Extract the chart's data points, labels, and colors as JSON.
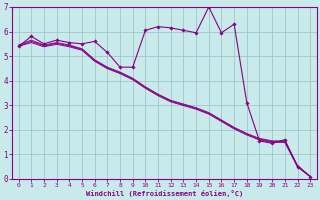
{
  "xlabel": "Windchill (Refroidissement éolien,°C)",
  "bg_color": "#c8eaea",
  "grid_color": "#a0c8c8",
  "line_color": "#880088",
  "xlim": [
    -0.5,
    23.5
  ],
  "ylim": [
    0,
    7
  ],
  "xticks": [
    0,
    1,
    2,
    3,
    4,
    5,
    6,
    7,
    8,
    9,
    10,
    11,
    12,
    13,
    14,
    15,
    16,
    17,
    18,
    19,
    20,
    21,
    22,
    23
  ],
  "yticks": [
    0,
    1,
    2,
    3,
    4,
    5,
    6,
    7
  ],
  "line1_x": [
    0,
    1,
    2,
    3,
    4,
    5,
    6,
    7,
    8,
    9,
    10,
    11,
    12,
    13,
    14,
    15,
    16,
    17,
    18,
    19,
    20,
    21,
    22,
    23
  ],
  "line1_y": [
    5.4,
    5.8,
    5.5,
    5.65,
    5.55,
    5.5,
    5.6,
    5.15,
    4.55,
    4.55,
    6.05,
    6.2,
    6.15,
    6.05,
    5.95,
    7.0,
    5.95,
    6.3,
    3.1,
    1.55,
    1.45,
    1.6,
    0.5,
    0.1
  ],
  "line2_x": [
    0,
    1,
    2,
    3,
    4,
    5,
    6,
    7,
    8,
    9,
    10,
    11,
    12,
    13,
    14,
    15,
    16,
    17,
    18,
    19,
    20,
    21,
    22,
    23
  ],
  "line2_y": [
    5.45,
    5.65,
    5.45,
    5.55,
    5.45,
    5.3,
    4.85,
    4.55,
    4.35,
    4.1,
    3.75,
    3.45,
    3.2,
    3.05,
    2.9,
    2.7,
    2.4,
    2.1,
    1.85,
    1.65,
    1.55,
    1.55,
    0.55,
    0.1
  ],
  "line3_x": [
    0,
    1,
    2,
    3,
    4,
    5,
    6,
    7,
    8,
    9,
    10,
    11,
    12,
    13,
    14,
    15,
    16,
    17,
    18,
    19,
    20,
    21,
    22,
    23
  ],
  "line3_y": [
    5.42,
    5.6,
    5.42,
    5.52,
    5.42,
    5.27,
    4.82,
    4.52,
    4.32,
    4.07,
    3.72,
    3.42,
    3.17,
    3.02,
    2.87,
    2.67,
    2.37,
    2.07,
    1.82,
    1.62,
    1.52,
    1.52,
    0.52,
    0.1
  ],
  "line4_x": [
    0,
    1,
    2,
    3,
    4,
    5,
    6,
    7,
    8,
    9,
    10,
    11,
    12,
    13,
    14,
    15,
    16,
    17,
    18,
    19,
    20,
    21,
    22,
    23
  ],
  "line4_y": [
    5.4,
    5.55,
    5.38,
    5.48,
    5.38,
    5.24,
    4.79,
    4.49,
    4.29,
    4.04,
    3.69,
    3.39,
    3.14,
    2.99,
    2.84,
    2.64,
    2.34,
    2.04,
    1.79,
    1.59,
    1.49,
    1.49,
    0.49,
    0.1
  ]
}
